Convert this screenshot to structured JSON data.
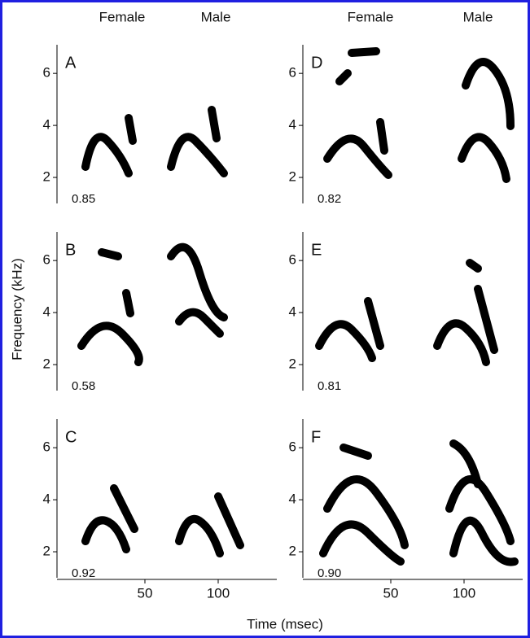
{
  "column_headers": [
    "Female",
    "Male",
    "Female",
    "Male"
  ],
  "y_axis": {
    "label": "Frequency (kHz)",
    "lim": [
      1,
      7.1
    ],
    "ticks": [
      2,
      4,
      6
    ]
  },
  "x_axis": {
    "label": "Time (msec)",
    "lim": [
      -10,
      140
    ],
    "ticks": [
      50,
      100
    ]
  },
  "panels": [
    {
      "label": "A",
      "score": "0.85"
    },
    {
      "label": "D",
      "score": "0.82"
    },
    {
      "label": "B",
      "score": "0.58"
    },
    {
      "label": "E",
      "score": "0.81"
    },
    {
      "label": "C",
      "score": "0.92"
    },
    {
      "label": "F",
      "score": "0.90"
    }
  ]
}
